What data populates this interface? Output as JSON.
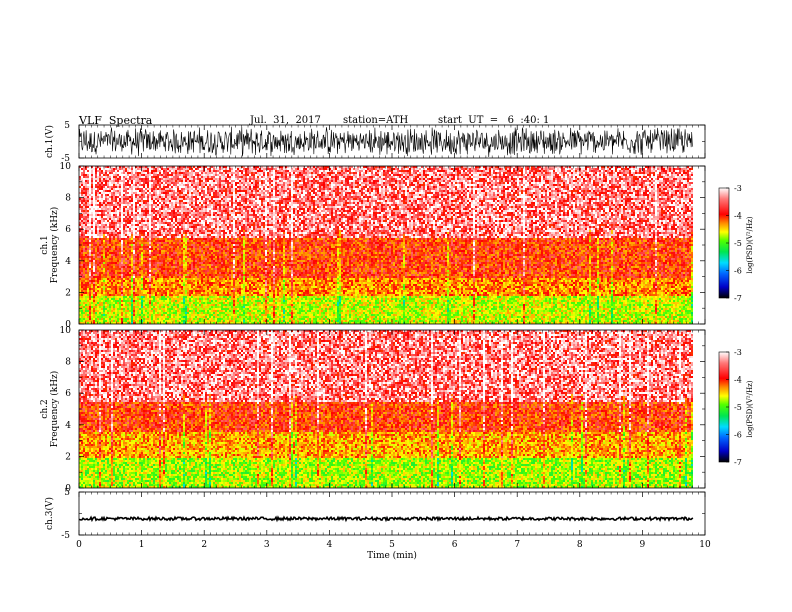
{
  "header": {
    "title": "VLF  Spectra",
    "date": "Jul.  31,  2017",
    "station": "station=ATH",
    "start_ut": "start  UT  =   6  :40: 1"
  },
  "chart_data": [
    {
      "type": "line",
      "panel": "ch1-waveform",
      "ylabel": "ch.1(V)",
      "ylim": [
        -5,
        5
      ],
      "yticks": [
        "5",
        "-5"
      ],
      "xlim": [
        0,
        10
      ],
      "series": [
        {
          "values": "dense waveform spanning approx -4.8 to 4.8 V over 0-9.8 min"
        }
      ]
    },
    {
      "type": "heatmap",
      "panel": "ch1-spectrogram",
      "ylabel": [
        "ch.1",
        "Frequency (kHz)"
      ],
      "ylim": [
        0,
        10
      ],
      "yticks": [
        "0",
        "2",
        "4",
        "6",
        "8",
        "10"
      ],
      "xlim": [
        0,
        9.8
      ],
      "bands": [
        {
          "from_khz": 0,
          "to_khz": 1.8,
          "log_psd": -4.7
        },
        {
          "from_khz": 1.8,
          "to_khz": 3.0,
          "log_psd": -4.2
        },
        {
          "from_khz": 3.0,
          "to_khz": 5.5,
          "log_psd": -3.9
        },
        {
          "from_khz": 5.5,
          "to_khz": 10,
          "log_psd": -3.5
        }
      ],
      "colorbar": {
        "label": "log(PSD)(V²/Hz)",
        "range": [
          -7,
          -3
        ],
        "ticks": [
          "-3",
          "-4",
          "-5",
          "-6",
          "-7"
        ]
      }
    },
    {
      "type": "heatmap",
      "panel": "ch2-spectrogram",
      "ylabel": [
        "ch.2",
        "Frequency (kHz)"
      ],
      "ylim": [
        0,
        10
      ],
      "yticks": [
        "0",
        "2",
        "4",
        "6",
        "8",
        "10"
      ],
      "xlim": [
        0,
        9.8
      ],
      "bands": [
        {
          "from_khz": 0,
          "to_khz": 1.9,
          "log_psd": -4.8
        },
        {
          "from_khz": 1.9,
          "to_khz": 3.6,
          "log_psd": -4.3
        },
        {
          "from_khz": 3.6,
          "to_khz": 5.5,
          "log_psd": -3.9
        },
        {
          "from_khz": 5.5,
          "to_khz": 10,
          "log_psd": -3.5
        }
      ],
      "colorbar": {
        "label": "log(PSD)(V²/Hz)",
        "range": [
          -7,
          -3
        ],
        "ticks": [
          "-3",
          "-4",
          "-5",
          "-6",
          "-7"
        ]
      }
    },
    {
      "type": "line",
      "panel": "ch3-waveform",
      "ylabel": "ch.3(V)",
      "ylim": [
        -5,
        5
      ],
      "yticks": [
        "5",
        "-5"
      ],
      "xlim": [
        0,
        10
      ],
      "series": [
        {
          "values": "near-constant trace at about -1.2 V over 0-9.8 min"
        }
      ]
    }
  ],
  "x_axis": {
    "label": "Time  (min)",
    "ticks": [
      "0",
      "1",
      "2",
      "3",
      "4",
      "5",
      "6",
      "7",
      "8",
      "9",
      "10"
    ]
  },
  "colors": {
    "colormap": [
      "#000000",
      "#0000c8",
      "#0064ff",
      "#00dcff",
      "#00e650",
      "#50ff00",
      "#ffff00",
      "#ff8c00",
      "#ff0000",
      "#ff7878",
      "#ffffff"
    ]
  }
}
